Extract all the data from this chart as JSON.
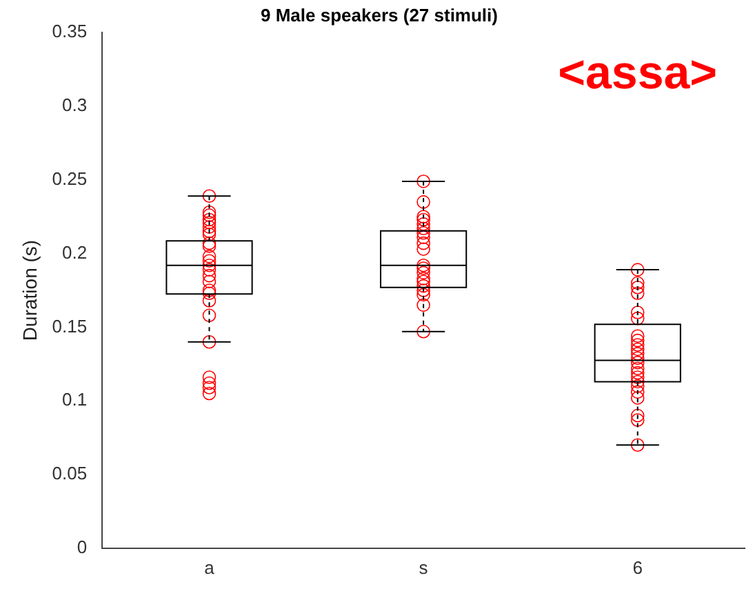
{
  "chart_data": {
    "type": "box",
    "title": "9 Male speakers (27 stimuli)",
    "ylabel": "Duration (s)",
    "categories": [
      "a",
      "s",
      "6"
    ],
    "ylim": [
      0,
      0.35
    ],
    "yticks": [
      0,
      0.05,
      0.1,
      0.15,
      0.2,
      0.25,
      0.3,
      0.35
    ],
    "grid": false,
    "legend": false,
    "annotations": [
      "<assa>"
    ],
    "series": [
      {
        "type": "box",
        "color": "#000000",
        "boxes": [
          {
            "low": 0.14,
            "q1": 0.1725,
            "median": 0.192,
            "q3": 0.2086,
            "high": 0.239
          },
          {
            "low": 0.147,
            "q1": 0.177,
            "median": 0.192,
            "q3": 0.2154,
            "high": 0.249
          },
          {
            "low": 0.07,
            "q1": 0.113,
            "median": 0.1275,
            "q3": 0.152,
            "high": 0.189
          }
        ]
      },
      {
        "type": "scatter",
        "color": "#ff0000",
        "marker": "circle",
        "x": [
          "a",
          "a",
          "a",
          "a",
          "a",
          "a",
          "a",
          "a",
          "a",
          "a",
          "a",
          "a",
          "a",
          "a",
          "a",
          "a",
          "a",
          "a",
          "a",
          "a",
          "a",
          "a",
          "a",
          "a",
          "a"
        ],
        "values": [
          0.239,
          0.228,
          0.226,
          0.223,
          0.221,
          0.218,
          0.215,
          0.213,
          0.207,
          0.205,
          0.198,
          0.195,
          0.192,
          0.189,
          0.185,
          0.181,
          0.175,
          0.173,
          0.168,
          0.158,
          0.14,
          0.116,
          0.112,
          0.109,
          0.105
        ]
      },
      {
        "type": "scatter",
        "color": "#ff0000",
        "marker": "circle",
        "x": [
          "s",
          "s",
          "s",
          "s",
          "s",
          "s",
          "s",
          "s",
          "s",
          "s",
          "s",
          "s",
          "s",
          "s",
          "s",
          "s",
          "s",
          "s",
          "s",
          "s"
        ],
        "values": [
          0.249,
          0.235,
          0.225,
          0.223,
          0.22,
          0.217,
          0.214,
          0.211,
          0.207,
          0.203,
          0.192,
          0.19,
          0.187,
          0.183,
          0.181,
          0.178,
          0.175,
          0.172,
          0.165,
          0.147
        ]
      },
      {
        "type": "scatter",
        "color": "#ff0000",
        "marker": "circle",
        "x": [
          "6",
          "6",
          "6",
          "6",
          "6",
          "6",
          "6",
          "6",
          "6",
          "6",
          "6",
          "6",
          "6",
          "6",
          "6",
          "6",
          "6",
          "6",
          "6",
          "6",
          "6",
          "6",
          "6"
        ],
        "values": [
          0.189,
          0.18,
          0.177,
          0.173,
          0.16,
          0.156,
          0.144,
          0.141,
          0.138,
          0.135,
          0.132,
          0.129,
          0.126,
          0.122,
          0.119,
          0.116,
          0.113,
          0.11,
          0.106,
          0.102,
          0.09,
          0.087,
          0.07
        ]
      }
    ]
  }
}
